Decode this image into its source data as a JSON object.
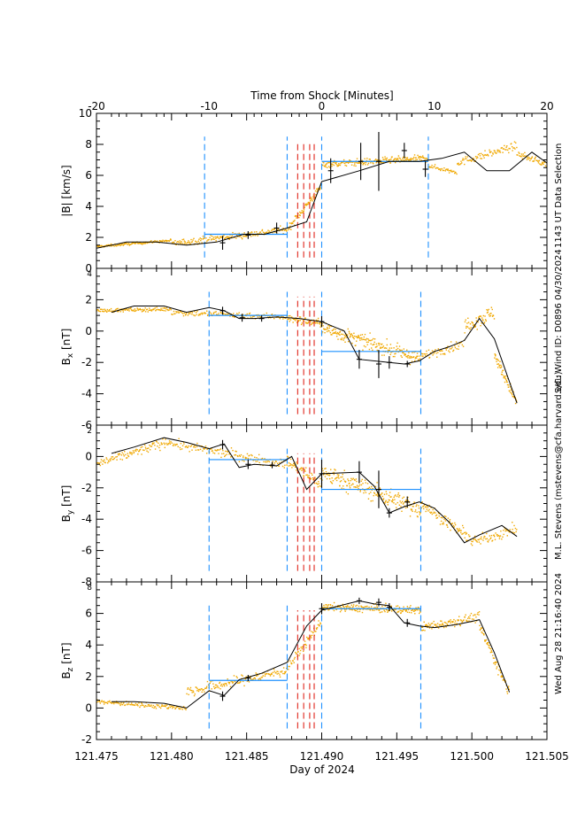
{
  "figure": {
    "top_axis_label": "Time from Shock [Minutes]",
    "bottom_axis_label": "Day of 2024",
    "side_annotations": [
      "1143 UT Data Selection",
      "S/C: Wind  ID: D0896  04/30/2024",
      "M.L. Stevens (mstevens@cfa.harvard.edu)",
      "Wed Aug 28 21:16:40 2024"
    ]
  },
  "chart_data": {
    "type": "line",
    "shared_x": {
      "label": "Day of 2024",
      "range": [
        121.475,
        121.505
      ],
      "ticks": [
        "121.475",
        "121.480",
        "121.485",
        "121.490",
        "121.495",
        "121.500",
        "121.505"
      ]
    },
    "top_x": {
      "label": "Time from Shock [Minutes]",
      "range": [
        -20,
        20
      ],
      "ticks": [
        "-20",
        "-10",
        "0",
        "10",
        "20"
      ]
    },
    "shock_lines_x": [
      121.4884,
      121.4888,
      121.4892,
      121.4895
    ],
    "colors": {
      "scatter": "#f0a800",
      "line": "#000000",
      "interval": "#1e90ff",
      "shock": "#e0251b"
    },
    "panels": [
      {
        "ylabel": "|B| [km/s]",
        "ylim": [
          0,
          10
        ],
        "yticks": [
          "0",
          "2",
          "4",
          "6",
          "8",
          "10"
        ],
        "interval_lines_x": [
          121.4822,
          121.4877,
          121.49,
          121.4971
        ],
        "upstream_mean": {
          "x": [
            121.4822,
            121.4877
          ],
          "y": 2.2
        },
        "downstream_mean": {
          "x": [
            121.49,
            121.4971
          ],
          "y": 6.9
        },
        "line_x": [
          121.475,
          121.477,
          121.479,
          121.481,
          121.482,
          121.483,
          121.4848,
          121.4862,
          121.4877,
          121.489,
          121.49,
          121.4925,
          121.4945,
          121.4965,
          121.498,
          121.4995,
          121.501,
          121.5025,
          121.504,
          121.505
        ],
        "line_y": [
          1.3,
          1.7,
          1.7,
          1.5,
          1.6,
          1.7,
          2.2,
          2.2,
          2.6,
          3.0,
          5.6,
          6.3,
          6.9,
          6.9,
          7.1,
          7.5,
          6.3,
          6.3,
          7.5,
          6.8
        ],
        "err_x": [
          121.4834,
          121.4851,
          121.487,
          121.4906,
          121.4926,
          121.4938,
          121.4955,
          121.4969
        ],
        "err_y": [
          1.65,
          2.15,
          2.6,
          6.3,
          6.9,
          6.9,
          7.6,
          6.4
        ],
        "err_half": [
          0.45,
          0.25,
          0.35,
          0.8,
          1.2,
          1.9,
          0.5,
          0.5
        ],
        "scatter": [
          {
            "x0": 121.475,
            "x1": 121.48,
            "y0": 1.4,
            "y1": 1.8,
            "n": 120,
            "s": 0.08
          },
          {
            "x0": 121.48,
            "x1": 121.4877,
            "y0": 1.6,
            "y1": 2.5,
            "n": 180,
            "s": 0.22
          },
          {
            "x0": 121.4877,
            "x1": 121.49,
            "y0": 2.5,
            "y1": 5.3,
            "n": 70,
            "s": 0.25
          },
          {
            "x0": 121.49,
            "x1": 121.4971,
            "y0": 6.7,
            "y1": 7.1,
            "n": 200,
            "s": 0.22
          },
          {
            "x0": 121.4971,
            "x1": 121.499,
            "y0": 6.6,
            "y1": 6.2,
            "n": 40,
            "s": 0.15
          },
          {
            "x0": 121.499,
            "x1": 121.503,
            "y0": 6.8,
            "y1": 7.9,
            "n": 90,
            "s": 0.25
          },
          {
            "x0": 121.503,
            "x1": 121.505,
            "y0": 7.4,
            "y1": 6.7,
            "n": 50,
            "s": 0.2
          }
        ]
      },
      {
        "ylabel": "B_x [nT]",
        "ylim": [
          -6,
          4
        ],
        "yticks": [
          "-6",
          "-4",
          "-2",
          "0",
          "2",
          "4"
        ],
        "interval_lines_x": [
          121.4825,
          121.4877,
          121.49,
          121.4966
        ],
        "upstream_mean": {
          "x": [
            121.4825,
            121.4877
          ],
          "y": 1.0
        },
        "downstream_mean": {
          "x": [
            121.49,
            121.4966
          ],
          "y": -1.3
        },
        "line_x": [
          121.476,
          121.4775,
          121.4795,
          121.481,
          121.4825,
          121.4835,
          121.4845,
          121.4855,
          121.487,
          121.4885,
          121.49,
          121.4915,
          121.4925,
          121.4945,
          121.4955,
          121.4965,
          121.4975,
          121.4985,
          121.4995,
          121.5005,
          121.5015,
          121.503
        ],
        "line_y": [
          1.2,
          1.6,
          1.6,
          1.2,
          1.5,
          1.3,
          0.8,
          0.8,
          0.9,
          0.8,
          0.6,
          0.0,
          -1.8,
          -2.0,
          -2.1,
          -1.9,
          -1.3,
          -1.0,
          -0.6,
          0.8,
          -0.5,
          -4.6
        ],
        "err_x": [
          121.4834,
          121.4847,
          121.486,
          121.49,
          121.4925,
          121.4938,
          121.4945,
          121.4957
        ],
        "err_y": [
          1.3,
          0.85,
          0.8,
          0.6,
          -1.8,
          -2.1,
          -2.0,
          -2.1
        ],
        "err_half": [
          0.25,
          0.25,
          0.2,
          0.35,
          0.6,
          0.9,
          0.4,
          0.2
        ],
        "scatter": [
          {
            "x0": 121.475,
            "x1": 121.48,
            "y0": 1.3,
            "y1": 1.4,
            "n": 110,
            "s": 0.12
          },
          {
            "x0": 121.48,
            "x1": 121.4877,
            "y0": 1.2,
            "y1": 0.9,
            "n": 140,
            "s": 0.2
          },
          {
            "x0": 121.4877,
            "x1": 121.49,
            "y0": 0.8,
            "y1": 0.5,
            "n": 60,
            "s": 0.25
          },
          {
            "x0": 121.49,
            "x1": 121.4966,
            "y0": 0.2,
            "y1": -1.8,
            "n": 220,
            "s": 0.45
          },
          {
            "x0": 121.4966,
            "x1": 121.4995,
            "y0": -1.6,
            "y1": -0.8,
            "n": 60,
            "s": 0.3
          },
          {
            "x0": 121.4995,
            "x1": 121.5015,
            "y0": 0.3,
            "y1": 1.2,
            "n": 60,
            "s": 0.5
          },
          {
            "x0": 121.5015,
            "x1": 121.503,
            "y0": -1.5,
            "y1": -4.6,
            "n": 60,
            "s": 0.35
          }
        ]
      },
      {
        "ylabel": "B_y [nT]",
        "ylim": [
          -8,
          2
        ],
        "yticks": [
          "-8",
          "-6",
          "-4",
          "-2",
          "0",
          "2"
        ],
        "interval_lines_x": [
          121.4825,
          121.4877,
          121.49,
          121.4966
        ],
        "upstream_mean": {
          "x": [
            121.4825,
            121.4877
          ],
          "y": -0.2
        },
        "downstream_mean": {
          "x": [
            121.49,
            121.4966
          ],
          "y": -2.1
        },
        "line_x": [
          121.476,
          121.4775,
          121.4795,
          121.481,
          121.4825,
          121.4835,
          121.4845,
          121.4855,
          121.487,
          121.488,
          121.489,
          121.49,
          121.4925,
          121.4935,
          121.4945,
          121.4955,
          121.4965,
          121.4975,
          121.4985,
          121.4995,
          121.5005,
          121.502,
          121.503
        ],
        "line_y": [
          0.2,
          0.6,
          1.2,
          0.9,
          0.5,
          0.8,
          -0.7,
          -0.5,
          -0.6,
          0.0,
          -2.1,
          -1.1,
          -1.0,
          -1.9,
          -3.6,
          -3.2,
          -2.9,
          -3.3,
          -4.2,
          -5.5,
          -5.0,
          -4.4,
          -5.1
        ],
        "err_x": [
          121.4834,
          121.4851,
          121.4867,
          121.49,
          121.4925,
          121.4938,
          121.4945,
          121.4957
        ],
        "err_y": [
          0.75,
          -0.5,
          -0.55,
          -1.1,
          -1.0,
          -2.1,
          -3.6,
          -2.9
        ],
        "err_half": [
          0.3,
          0.3,
          0.2,
          0.9,
          0.7,
          1.2,
          0.3,
          0.35
        ],
        "scatter": [
          {
            "x0": 121.475,
            "x1": 121.48,
            "y0": -0.5,
            "y1": 1.0,
            "n": 110,
            "s": 0.3
          },
          {
            "x0": 121.48,
            "x1": 121.4877,
            "y0": 0.8,
            "y1": -0.5,
            "n": 150,
            "s": 0.3
          },
          {
            "x0": 121.4877,
            "x1": 121.49,
            "y0": -0.3,
            "y1": -1.8,
            "n": 60,
            "s": 0.4
          },
          {
            "x0": 121.49,
            "x1": 121.4966,
            "y0": -1.0,
            "y1": -3.4,
            "n": 220,
            "s": 0.6
          },
          {
            "x0": 121.4966,
            "x1": 121.5,
            "y0": -3.0,
            "y1": -5.3,
            "n": 90,
            "s": 0.35
          },
          {
            "x0": 121.5,
            "x1": 121.503,
            "y0": -5.5,
            "y1": -4.6,
            "n": 70,
            "s": 0.35
          }
        ]
      },
      {
        "ylabel": "B_z [nT]",
        "ylim": [
          -2,
          8
        ],
        "yticks": [
          "-2",
          "0",
          "2",
          "4",
          "6",
          "8"
        ],
        "interval_lines_x": [
          121.4825,
          121.4877,
          121.49,
          121.4966
        ],
        "upstream_mean": {
          "x": [
            121.4825,
            121.4877
          ],
          "y": 1.75
        },
        "downstream_mean": {
          "x": [
            121.49,
            121.4966
          ],
          "y": 6.3
        },
        "line_x": [
          121.476,
          121.4775,
          121.4795,
          121.481,
          121.4825,
          121.4835,
          121.4845,
          121.486,
          121.4877,
          121.489,
          121.49,
          121.4925,
          121.4935,
          121.4945,
          121.4955,
          121.4965,
          121.4975,
          121.499,
          121.5005,
          121.5015,
          121.5025
        ],
        "line_y": [
          0.4,
          0.4,
          0.3,
          0.0,
          1.1,
          0.8,
          1.8,
          2.2,
          2.9,
          5.2,
          6.2,
          6.8,
          6.6,
          6.5,
          5.4,
          5.2,
          5.1,
          5.3,
          5.6,
          3.5,
          1.0
        ],
        "err_x": [
          121.4834,
          121.4851,
          121.49,
          121.4925,
          121.4938,
          121.4945,
          121.4957
        ],
        "err_y": [
          0.75,
          1.9,
          6.3,
          6.8,
          6.7,
          6.4,
          5.4
        ],
        "err_half": [
          0.3,
          0.2,
          0.35,
          0.2,
          0.25,
          0.25,
          0.25
        ],
        "scatter": [
          {
            "x0": 121.475,
            "x1": 121.481,
            "y0": 0.4,
            "y1": 0.0,
            "n": 120,
            "s": 0.15
          },
          {
            "x0": 121.481,
            "x1": 121.4877,
            "y0": 1.0,
            "y1": 2.4,
            "n": 150,
            "s": 0.35
          },
          {
            "x0": 121.4877,
            "x1": 121.49,
            "y0": 2.5,
            "y1": 5.5,
            "n": 60,
            "s": 0.3
          },
          {
            "x0": 121.49,
            "x1": 121.4966,
            "y0": 6.4,
            "y1": 6.2,
            "n": 200,
            "s": 0.25
          },
          {
            "x0": 121.4966,
            "x1": 121.5005,
            "y0": 5.1,
            "y1": 5.8,
            "n": 100,
            "s": 0.3
          },
          {
            "x0": 121.5005,
            "x1": 121.5025,
            "y0": 5.2,
            "y1": 1.0,
            "n": 60,
            "s": 0.35
          }
        ]
      }
    ]
  }
}
